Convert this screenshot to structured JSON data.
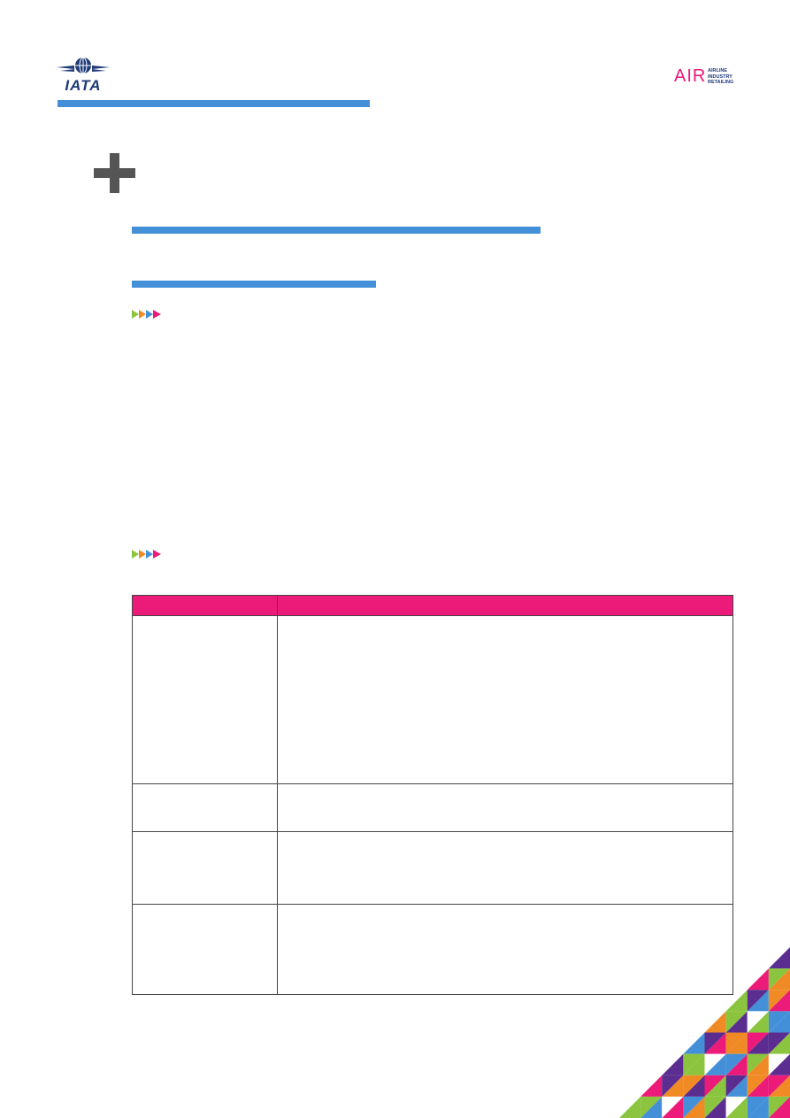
{
  "header": {
    "iata_logo": {
      "text": "IATA"
    },
    "air_logo": {
      "word": "AIR",
      "sub_lines": [
        "AIRLINE",
        "INDUSTRY",
        "RETAILING"
      ]
    }
  },
  "colors": {
    "accent_blue": "#4490d8",
    "accent_pink": "#ec1a78",
    "navy": "#1e3a78",
    "plus_gray": "#555555",
    "pattern": [
      "#ec1a78",
      "#8bc53f",
      "#f08a24",
      "#4490d8",
      "#5b2d90",
      "#ffffff"
    ]
  },
  "icons": {
    "plus": "plus-icon",
    "arrow_marker": "arrow-marker-icon",
    "corner_pattern": "triangle-pattern"
  },
  "table": {
    "headers": [
      "",
      ""
    ],
    "rows": [
      [
        "",
        ""
      ],
      [
        "",
        ""
      ],
      [
        "",
        ""
      ],
      [
        "",
        ""
      ]
    ]
  }
}
